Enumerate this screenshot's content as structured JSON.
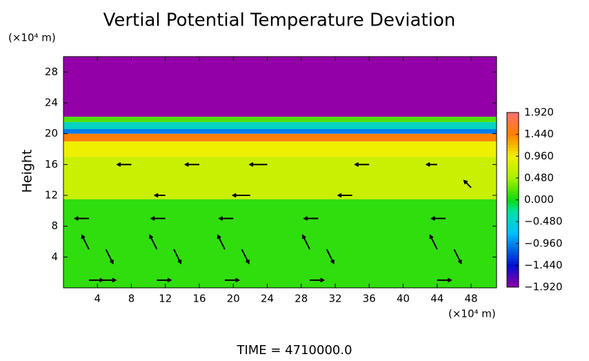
{
  "chart_data": {
    "type": "contour",
    "title": "Vertial Potential Temperature Deviation",
    "y_unit": "(×10⁴ m)",
    "x_unit": "(×10⁴ m)",
    "ylabel": "Height",
    "footer": "TIME = 4710000.0",
    "xlim": [
      0,
      51
    ],
    "ylim": [
      0,
      30
    ],
    "xticks": [
      4,
      8,
      12,
      16,
      20,
      24,
      28,
      32,
      36,
      40,
      44,
      48
    ],
    "yticks": [
      4,
      8,
      12,
      16,
      20,
      24,
      28
    ],
    "layers": [
      {
        "from": 0,
        "to": 11.5,
        "value": 0.1
      },
      {
        "from": 11.5,
        "to": 17,
        "value": 0.7
      },
      {
        "from": 17,
        "to": 19,
        "value": 0.95
      },
      {
        "from": 19,
        "to": 20,
        "value": 1.45
      },
      {
        "from": 20,
        "to": 20.6,
        "value": -1.0
      },
      {
        "from": 20.6,
        "to": 21.5,
        "value": -0.4
      },
      {
        "from": 21.5,
        "to": 22.2,
        "value": 0.2
      },
      {
        "from": 22.2,
        "to": 30,
        "value": -1.92
      }
    ],
    "colorscale": [
      {
        "value": -1.92,
        "color": "#9400a8"
      },
      {
        "value": -1.44,
        "color": "#0010c8"
      },
      {
        "value": -0.72,
        "color": "#00c0ff"
      },
      {
        "value": -0.24,
        "color": "#00e0a0"
      },
      {
        "value": 0.0,
        "color": "#10d810"
      },
      {
        "value": 0.48,
        "color": "#a8f000"
      },
      {
        "value": 0.96,
        "color": "#f0f000"
      },
      {
        "value": 1.44,
        "color": "#ff8000"
      },
      {
        "value": 1.92,
        "color": "#ff7070"
      }
    ],
    "clim": [
      -1.92,
      1.92
    ],
    "cticks": [
      {
        "value": 1.92,
        "label": "1.920"
      },
      {
        "value": 1.44,
        "label": "1.440"
      },
      {
        "value": 0.96,
        "label": "0.960"
      },
      {
        "value": 0.48,
        "label": "0.480"
      },
      {
        "value": 0.0,
        "label": "0.000"
      },
      {
        "value": -0.48,
        "label": "−0.480"
      },
      {
        "value": -0.96,
        "label": "−0.960"
      },
      {
        "value": -1.44,
        "label": "−1.440"
      },
      {
        "value": -1.92,
        "label": "−1.920"
      }
    ],
    "vectors": [
      [
        3,
        1,
        2,
        0
      ],
      [
        3,
        5,
        -1,
        2
      ],
      [
        3,
        9,
        -2,
        0
      ],
      [
        5,
        5,
        1,
        -2
      ],
      [
        4.5,
        1,
        2,
        0
      ],
      [
        11,
        1,
        2,
        0
      ],
      [
        11,
        5,
        -1,
        2
      ],
      [
        13,
        5,
        1,
        -2
      ],
      [
        12,
        9,
        -2,
        0
      ],
      [
        19,
        1,
        2,
        0
      ],
      [
        19,
        5,
        -1,
        2
      ],
      [
        21,
        5,
        1,
        -2
      ],
      [
        20,
        9,
        -2,
        0
      ],
      [
        29,
        1,
        2,
        0
      ],
      [
        29,
        5,
        -1,
        2
      ],
      [
        31,
        5,
        1,
        -2
      ],
      [
        30,
        9,
        -2,
        0
      ],
      [
        44,
        1,
        2,
        0
      ],
      [
        44,
        5,
        -1,
        2
      ],
      [
        46,
        5,
        1,
        -2
      ],
      [
        45,
        9,
        -2,
        0
      ],
      [
        8,
        16,
        -2,
        0
      ],
      [
        16,
        16,
        -2,
        0
      ],
      [
        24,
        16,
        -2.5,
        0
      ],
      [
        36,
        16,
        -2,
        0
      ],
      [
        44,
        16,
        -1.5,
        0
      ],
      [
        12,
        12,
        -1.5,
        0
      ],
      [
        22,
        12,
        -2.5,
        0
      ],
      [
        34,
        12,
        -2,
        0
      ],
      [
        48,
        13,
        -1,
        1
      ]
    ]
  }
}
